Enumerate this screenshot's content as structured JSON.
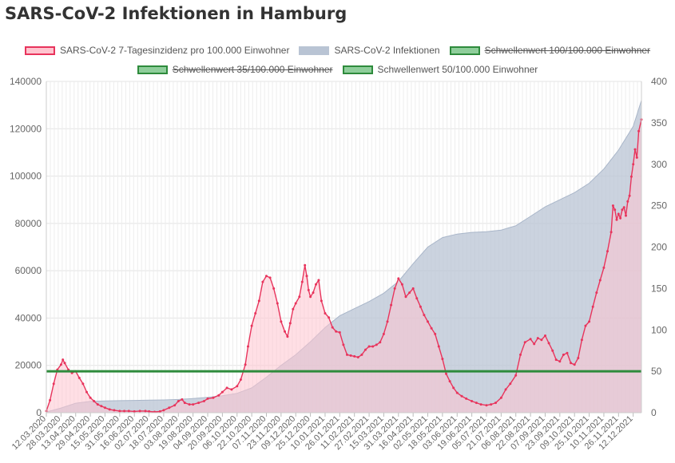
{
  "page": {
    "title": "SARS-CoV-2 Infektionen in Hamburg"
  },
  "legend": [
    {
      "label": "SARS-CoV-2 7-Tagesinzidenz pro 100.000 Einwohner",
      "fill": "#ffc4cf",
      "stroke": "#e8345c",
      "hidden": false
    },
    {
      "label": "SARS-CoV-2 Infektionen",
      "fill": "#b9c4d4",
      "stroke": "#b9c4d4",
      "hidden": false
    },
    {
      "label": "Schwellenwert 100/100.000 Einwohner",
      "fill": "#8fce9b",
      "stroke": "#2e8b3c",
      "hidden": true
    },
    {
      "label": "Schwellenwert 35/100.000 Einwohner",
      "fill": "#8fce9b",
      "stroke": "#2e8b3c",
      "hidden": true
    },
    {
      "label": "Schwellenwert 50/100.000 Einwohner",
      "fill": "#8fce9b",
      "stroke": "#2e8b3c",
      "hidden": false
    }
  ],
  "chart_data": {
    "type": "line",
    "x_start": "12.03.2020",
    "x_end": "21.12.2021",
    "x_tick_labels": [
      "12.03.2020",
      "28.03.2020",
      "13.04.2020",
      "29.04.2020",
      "15.05.2020",
      "31.05.2020",
      "16.06.2020",
      "02.07.2020",
      "18.07.2020",
      "03.08.2020",
      "19.08.2020",
      "04.09.2020",
      "20.09.2020",
      "06.10.2020",
      "22.10.2020",
      "07.11.2020",
      "23.11.2020",
      "09.12.2020",
      "25.12.2020",
      "10.01.2021",
      "26.01.2021",
      "11.02.2021",
      "27.02.2021",
      "15.03.2021",
      "31.03.2021",
      "16.04.2021",
      "02.05.2021",
      "18.05.2021",
      "03.06.2021",
      "19.06.2021",
      "05.07.2021",
      "21.07.2021",
      "06.08.2021",
      "22.08.2021",
      "07.09.2021",
      "23.09.2021",
      "09.10.2021",
      "25.10.2021",
      "10.11.2021",
      "26.11.2021",
      "12.12.2021"
    ],
    "y_left": {
      "min": 0,
      "max": 140000,
      "ticks": [
        0,
        20000,
        40000,
        60000,
        80000,
        100000,
        120000,
        140000
      ]
    },
    "y_right": {
      "min": 0,
      "max": 400,
      "ticks": [
        0,
        50,
        100,
        150,
        200,
        250,
        300,
        350,
        400
      ]
    },
    "grid": true,
    "legend_position": "top",
    "series": [
      {
        "name": "SARS-CoV-2 7-Tagesinzidenz pro 100.000 Einwohner",
        "axis": "right",
        "color": "#e8345c",
        "fill": "#ffc4cf",
        "points": [
          [
            "12.03.2020",
            2
          ],
          [
            "16.03.2020",
            15
          ],
          [
            "20.03.2020",
            35
          ],
          [
            "24.03.2020",
            52
          ],
          [
            "28.03.2020",
            58
          ],
          [
            "30.03.2020",
            64
          ],
          [
            "01.04.2020",
            60
          ],
          [
            "05.04.2020",
            52
          ],
          [
            "09.04.2020",
            48
          ],
          [
            "13.04.2020",
            50
          ],
          [
            "17.04.2020",
            42
          ],
          [
            "21.04.2020",
            35
          ],
          [
            "25.04.2020",
            25
          ],
          [
            "29.04.2020",
            18
          ],
          [
            "03.05.2020",
            14
          ],
          [
            "07.05.2020",
            10
          ],
          [
            "11.05.2020",
            8
          ],
          [
            "15.05.2020",
            6
          ],
          [
            "20.05.2020",
            4
          ],
          [
            "25.05.2020",
            3
          ],
          [
            "31.05.2020",
            2
          ],
          [
            "05.06.2020",
            2
          ],
          [
            "10.06.2020",
            2
          ],
          [
            "16.06.2020",
            1.5
          ],
          [
            "22.06.2020",
            2
          ],
          [
            "28.06.2020",
            2
          ],
          [
            "02.07.2020",
            1.5
          ],
          [
            "08.07.2020",
            1
          ],
          [
            "14.07.2020",
            1.5
          ],
          [
            "18.07.2020",
            3
          ],
          [
            "24.07.2020",
            6
          ],
          [
            "30.07.2020",
            9
          ],
          [
            "03.08.2020",
            14
          ],
          [
            "07.08.2020",
            16
          ],
          [
            "10.08.2020",
            12
          ],
          [
            "15.08.2020",
            10
          ],
          [
            "19.08.2020",
            10
          ],
          [
            "25.08.2020",
            12
          ],
          [
            "31.08.2020",
            14
          ],
          [
            "04.09.2020",
            17
          ],
          [
            "10.09.2020",
            18
          ],
          [
            "16.09.2020",
            21
          ],
          [
            "20.09.2020",
            25
          ],
          [
            "25.09.2020",
            30
          ],
          [
            "30.09.2020",
            28
          ],
          [
            "06.10.2020",
            32
          ],
          [
            "10.10.2020",
            40
          ],
          [
            "15.10.2020",
            58
          ],
          [
            "18.10.2020",
            80
          ],
          [
            "22.10.2020",
            105
          ],
          [
            "26.10.2020",
            120
          ],
          [
            "30.10.2020",
            135
          ],
          [
            "03.11.2020",
            158
          ],
          [
            "07.11.2020",
            165
          ],
          [
            "11.11.2020",
            163
          ],
          [
            "15.11.2020",
            150
          ],
          [
            "19.11.2020",
            132
          ],
          [
            "23.11.2020",
            110
          ],
          [
            "27.11.2020",
            98
          ],
          [
            "30.11.2020",
            92
          ],
          [
            "03.12.2020",
            108
          ],
          [
            "06.12.2020",
            125
          ],
          [
            "09.12.2020",
            132
          ],
          [
            "13.12.2020",
            140
          ],
          [
            "16.12.2020",
            158
          ],
          [
            "19.12.2020",
            178
          ],
          [
            "21.12.2020",
            165
          ],
          [
            "23.12.2020",
            148
          ],
          [
            "25.12.2020",
            140
          ],
          [
            "28.12.2020",
            145
          ],
          [
            "31.12.2020",
            155
          ],
          [
            "03.01.2021",
            160
          ],
          [
            "06.01.2021",
            135
          ],
          [
            "10.01.2021",
            120
          ],
          [
            "14.01.2021",
            115
          ],
          [
            "18.01.2021",
            103
          ],
          [
            "22.01.2021",
            98
          ],
          [
            "26.01.2021",
            97
          ],
          [
            "30.01.2021",
            82
          ],
          [
            "03.02.2021",
            70
          ],
          [
            "07.02.2021",
            69
          ],
          [
            "11.02.2021",
            68
          ],
          [
            "15.02.2021",
            67
          ],
          [
            "19.02.2021",
            70
          ],
          [
            "23.02.2021",
            76
          ],
          [
            "27.02.2021",
            80
          ],
          [
            "03.03.2021",
            80
          ],
          [
            "07.03.2021",
            82
          ],
          [
            "11.03.2021",
            85
          ],
          [
            "15.03.2021",
            95
          ],
          [
            "19.03.2021",
            110
          ],
          [
            "23.03.2021",
            130
          ],
          [
            "27.03.2021",
            150
          ],
          [
            "31.03.2021",
            162
          ],
          [
            "04.04.2021",
            155
          ],
          [
            "08.04.2021",
            140
          ],
          [
            "12.04.2021",
            145
          ],
          [
            "16.04.2021",
            150
          ],
          [
            "20.04.2021",
            138
          ],
          [
            "24.04.2021",
            128
          ],
          [
            "28.04.2021",
            118
          ],
          [
            "02.05.2021",
            110
          ],
          [
            "06.05.2021",
            102
          ],
          [
            "10.05.2021",
            95
          ],
          [
            "14.05.2021",
            80
          ],
          [
            "18.05.2021",
            65
          ],
          [
            "22.05.2021",
            47
          ],
          [
            "26.05.2021",
            38
          ],
          [
            "30.05.2021",
            30
          ],
          [
            "03.06.2021",
            24
          ],
          [
            "08.06.2021",
            20
          ],
          [
            "13.06.2021",
            17
          ],
          [
            "19.06.2021",
            14
          ],
          [
            "24.06.2021",
            12
          ],
          [
            "29.06.2021",
            10
          ],
          [
            "05.07.2021",
            9
          ],
          [
            "10.07.2021",
            10
          ],
          [
            "15.07.2021",
            12
          ],
          [
            "21.07.2021",
            18
          ],
          [
            "26.07.2021",
            28
          ],
          [
            "31.07.2021",
            35
          ],
          [
            "06.08.2021",
            45
          ],
          [
            "11.08.2021",
            70
          ],
          [
            "16.08.2021",
            85
          ],
          [
            "22.08.2021",
            89
          ],
          [
            "26.08.2021",
            83
          ],
          [
            "30.08.2021",
            90
          ],
          [
            "03.09.2021",
            88
          ],
          [
            "07.09.2021",
            93
          ],
          [
            "11.09.2021",
            84
          ],
          [
            "15.09.2021",
            75
          ],
          [
            "19.09.2021",
            64
          ],
          [
            "23.09.2021",
            62
          ],
          [
            "27.09.2021",
            70
          ],
          [
            "01.10.2021",
            72
          ],
          [
            "05.10.2021",
            60
          ],
          [
            "09.10.2021",
            58
          ],
          [
            "13.10.2021",
            66
          ],
          [
            "17.10.2021",
            88
          ],
          [
            "21.10.2021",
            105
          ],
          [
            "25.10.2021",
            110
          ],
          [
            "29.10.2021",
            128
          ],
          [
            "02.11.2021",
            145
          ],
          [
            "06.11.2021",
            160
          ],
          [
            "10.11.2021",
            175
          ],
          [
            "14.11.2021",
            195
          ],
          [
            "18.11.2021",
            218
          ],
          [
            "20.11.2021",
            250
          ],
          [
            "22.11.2021",
            245
          ],
          [
            "24.11.2021",
            233
          ],
          [
            "26.11.2021",
            240
          ],
          [
            "28.11.2021",
            235
          ],
          [
            "30.11.2021",
            245
          ],
          [
            "02.12.2021",
            248
          ],
          [
            "04.12.2021",
            238
          ],
          [
            "06.12.2021",
            255
          ],
          [
            "08.12.2021",
            262
          ],
          [
            "10.12.2021",
            285
          ],
          [
            "12.12.2021",
            300
          ],
          [
            "14.12.2021",
            318
          ],
          [
            "16.12.2021",
            308
          ],
          [
            "18.12.2021",
            340
          ],
          [
            "21.12.2021",
            354
          ]
        ]
      },
      {
        "name": "SARS-CoV-2 Infektionen",
        "axis": "left",
        "color": "#b9c4d4",
        "fill": "#b9c4d4",
        "points": [
          [
            "12.03.2020",
            300
          ],
          [
            "28.03.2020",
            2000
          ],
          [
            "13.04.2020",
            4000
          ],
          [
            "29.04.2020",
            4800
          ],
          [
            "15.05.2020",
            5000
          ],
          [
            "31.05.2020",
            5100
          ],
          [
            "16.06.2020",
            5200
          ],
          [
            "02.07.2020",
            5300
          ],
          [
            "18.07.2020",
            5400
          ],
          [
            "03.08.2020",
            5600
          ],
          [
            "19.08.2020",
            6000
          ],
          [
            "04.09.2020",
            6500
          ],
          [
            "20.09.2020",
            7200
          ],
          [
            "06.10.2020",
            8200
          ],
          [
            "22.10.2020",
            10500
          ],
          [
            "07.11.2020",
            15000
          ],
          [
            "23.11.2020",
            20000
          ],
          [
            "09.12.2020",
            24500
          ],
          [
            "25.12.2020",
            30000
          ],
          [
            "10.01.2021",
            36000
          ],
          [
            "26.01.2021",
            41000
          ],
          [
            "11.02.2021",
            44000
          ],
          [
            "27.02.2021",
            47000
          ],
          [
            "15.03.2021",
            50500
          ],
          [
            "31.03.2021",
            55500
          ],
          [
            "16.04.2021",
            63000
          ],
          [
            "02.05.2021",
            70000
          ],
          [
            "18.05.2021",
            74000
          ],
          [
            "03.06.2021",
            75500
          ],
          [
            "19.06.2021",
            76200
          ],
          [
            "05.07.2021",
            76500
          ],
          [
            "21.07.2021",
            77200
          ],
          [
            "06.08.2021",
            79000
          ],
          [
            "22.08.2021",
            83000
          ],
          [
            "07.09.2021",
            87000
          ],
          [
            "23.09.2021",
            90000
          ],
          [
            "09.10.2021",
            93000
          ],
          [
            "25.10.2021",
            97000
          ],
          [
            "10.11.2021",
            103000
          ],
          [
            "26.11.2021",
            111000
          ],
          [
            "12.12.2021",
            121000
          ],
          [
            "21.12.2021",
            132000
          ]
        ]
      },
      {
        "name": "Schwellenwert 50/100.000 Einwohner",
        "axis": "right",
        "color": "#2e8b3c",
        "constant": 50
      }
    ]
  }
}
